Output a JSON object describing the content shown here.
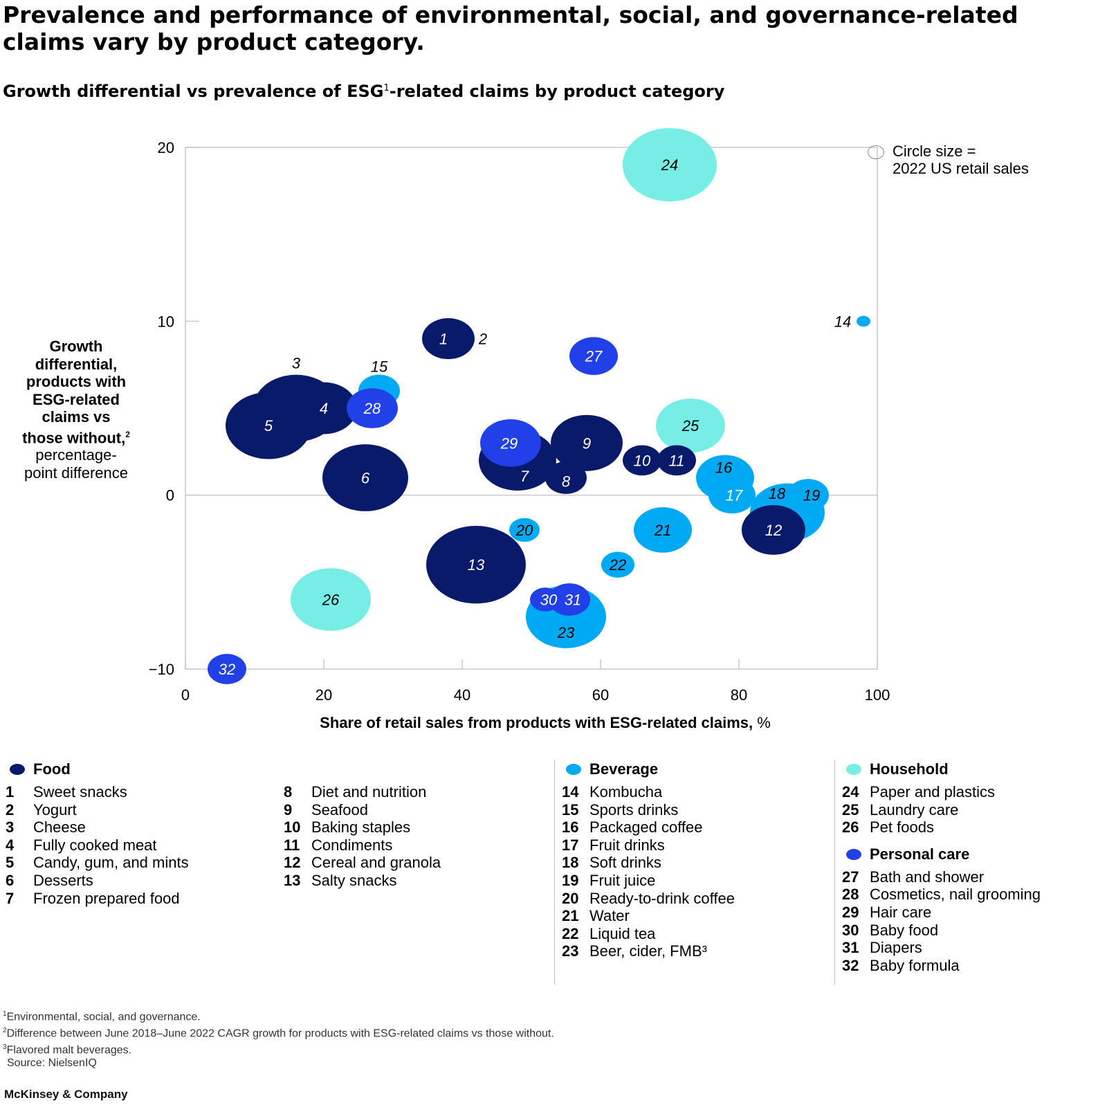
{
  "title": "Prevalence and performance of environmental, social, and governance-related claims vary by product category.",
  "subtitle": {
    "text": "Growth differential vs prevalence of ESG",
    "sup": "1",
    "rest": "-related claims by product category"
  },
  "y_axis_label": {
    "bold": [
      "Growth",
      "differential,",
      "products with",
      "ESG-related",
      "claims vs"
    ],
    "bold_last": "those without,",
    "bold_last_sup": "2",
    "normal": [
      "percentage-",
      "point difference"
    ]
  },
  "size_note": {
    "line1": "Circle size =",
    "line2": "2022 US retail sales"
  },
  "colors": {
    "food": "#0a1a6b",
    "beverage": "#00a9f4",
    "household": "#76ede5",
    "personal_care": "#2140e8"
  },
  "chart_data": {
    "type": "scatter",
    "xlabel": "Share of retail sales from products with ESG-related claims, %",
    "ylabel": "Growth differential, products with ESG-related claims vs those without, percentage-point difference",
    "xlim": [
      0,
      100
    ],
    "ylim": [
      -10,
      20
    ],
    "x_ticks": [
      0,
      20,
      40,
      60,
      80,
      100
    ],
    "y_ticks": [
      -10,
      0,
      10,
      20
    ],
    "y_tick_labels": [
      "−10",
      "0",
      "10",
      "20"
    ],
    "grid": false,
    "size_encoding": "2022 US retail sales",
    "points": [
      {
        "id": "26",
        "category": "household",
        "x": 21,
        "y": -6,
        "r": 58
      },
      {
        "id": "24",
        "category": "household",
        "x": 70,
        "y": 19,
        "r": 68
      },
      {
        "id": "25",
        "category": "household",
        "x": 73,
        "y": 4,
        "r": 50
      },
      {
        "id": "5",
        "category": "food",
        "x": 12,
        "y": 4,
        "r": 62
      },
      {
        "id": "3",
        "category": "food",
        "x": 16,
        "y": 5,
        "r": 62
      },
      {
        "id": "4",
        "category": "food",
        "x": 20,
        "y": 5,
        "r": 48
      },
      {
        "id": "6",
        "category": "food",
        "x": 26,
        "y": 1,
        "r": 62
      },
      {
        "id": "1",
        "category": "food",
        "x": 38,
        "y": 9,
        "r": 38
      },
      {
        "id": "2",
        "category": "food",
        "x": 43,
        "y": 9,
        "r": 0
      },
      {
        "id": "13",
        "category": "food",
        "x": 42,
        "y": -4,
        "r": 72
      },
      {
        "id": "7",
        "category": "food",
        "x": 48,
        "y": 2,
        "r": 56
      },
      {
        "id": "8",
        "category": "food",
        "x": 55,
        "y": 1,
        "r": 30
      },
      {
        "id": "9",
        "category": "food",
        "x": 58,
        "y": 3,
        "r": 52
      },
      {
        "id": "10",
        "category": "food",
        "x": 66,
        "y": 2,
        "r": 28
      },
      {
        "id": "11",
        "category": "food",
        "x": 71,
        "y": 2,
        "r": 28
      },
      {
        "id": "15",
        "category": "beverage",
        "x": 28,
        "y": 6,
        "r": 30
      },
      {
        "id": "14",
        "category": "beverage",
        "x": 98,
        "y": 10,
        "r": 10
      },
      {
        "id": "20",
        "category": "beverage",
        "x": 49,
        "y": -2,
        "r": 22
      },
      {
        "id": "22",
        "category": "beverage",
        "x": 62.5,
        "y": -4,
        "r": 24
      },
      {
        "id": "21",
        "category": "beverage",
        "x": 69,
        "y": -2,
        "r": 42
      },
      {
        "id": "23",
        "category": "beverage",
        "x": 55,
        "y": -7,
        "r": 58
      },
      {
        "id": "16",
        "category": "beverage",
        "x": 78,
        "y": 1,
        "r": 42
      },
      {
        "id": "17",
        "category": "beverage",
        "x": 79,
        "y": 0,
        "r": 34
      },
      {
        "id": "18",
        "category": "beverage",
        "x": 87,
        "y": -1,
        "r": 54
      },
      {
        "id": "19",
        "category": "beverage",
        "x": 90,
        "y": 0,
        "r": 30
      },
      {
        "id": "12",
        "category": "food",
        "x": 85,
        "y": -2,
        "r": 46
      },
      {
        "id": "28",
        "category": "personal_care",
        "x": 27,
        "y": 5,
        "r": 37
      },
      {
        "id": "29",
        "category": "personal_care",
        "x": 47,
        "y": 3,
        "r": 44
      },
      {
        "id": "27",
        "category": "personal_care",
        "x": 59,
        "y": 8,
        "r": 35
      },
      {
        "id": "30",
        "category": "personal_care",
        "x": 52,
        "y": -6,
        "r": 22
      },
      {
        "id": "31",
        "category": "personal_care",
        "x": 55.5,
        "y": -6,
        "r": 30
      },
      {
        "id": "32",
        "category": "personal_care",
        "x": 6,
        "y": -10,
        "r": 28
      }
    ],
    "labels": [
      {
        "id": "24",
        "x": 70,
        "y": 19,
        "dx": 0,
        "dy": 0,
        "color": "#000"
      },
      {
        "id": "25",
        "x": 73,
        "y": 4,
        "dx": 0,
        "dy": 0,
        "color": "#000"
      },
      {
        "id": "26",
        "x": 21,
        "y": -6,
        "dx": 0,
        "dy": 0,
        "color": "#000"
      },
      {
        "id": "5",
        "x": 12,
        "y": 4,
        "dx": 0,
        "dy": 0,
        "color": "#fff"
      },
      {
        "id": "3",
        "x": 16,
        "y": 7.6,
        "dx": 0,
        "dy": 0,
        "color": "#000"
      },
      {
        "id": "4",
        "x": 20,
        "y": 5,
        "dx": 0,
        "dy": 0,
        "color": "#fff"
      },
      {
        "id": "6",
        "x": 26,
        "y": 1,
        "dx": 0,
        "dy": 0,
        "color": "#fff"
      },
      {
        "id": "1",
        "x": 37.3,
        "y": 9,
        "dx": 0,
        "dy": 0,
        "color": "#fff"
      },
      {
        "id": "2",
        "x": 43,
        "y": 9,
        "dx": 0,
        "dy": 0,
        "color": "#000"
      },
      {
        "id": "13",
        "x": 42,
        "y": -4,
        "dx": 0,
        "dy": 0,
        "color": "#fff"
      },
      {
        "id": "7",
        "x": 49,
        "y": 1.1,
        "dx": 0,
        "dy": 0,
        "color": "#fff"
      },
      {
        "id": "8",
        "x": 55,
        "y": 0.8,
        "dx": 0,
        "dy": 0,
        "color": "#fff"
      },
      {
        "id": "9",
        "x": 58,
        "y": 3,
        "dx": 0,
        "dy": 0,
        "color": "#fff"
      },
      {
        "id": "10",
        "x": 66,
        "y": 2,
        "dx": 0,
        "dy": 0,
        "color": "#fff"
      },
      {
        "id": "11",
        "x": 71,
        "y": 2,
        "dx": 0,
        "dy": 0,
        "color": "#fff"
      },
      {
        "id": "15",
        "x": 28,
        "y": 7.4,
        "dx": 0,
        "dy": 0,
        "color": "#000"
      },
      {
        "id": "14",
        "x": 95,
        "y": 10,
        "dx": 0,
        "dy": 0,
        "color": "#000"
      },
      {
        "id": "20",
        "x": 49,
        "y": -2,
        "dx": 0,
        "dy": 0,
        "color": "#000"
      },
      {
        "id": "22",
        "x": 62.5,
        "y": -4,
        "dx": 0,
        "dy": 0,
        "color": "#000"
      },
      {
        "id": "21",
        "x": 69,
        "y": -2,
        "dx": 0,
        "dy": 0,
        "color": "#000"
      },
      {
        "id": "23",
        "x": 55,
        "y": -7.9,
        "dx": 0,
        "dy": 0,
        "color": "#000"
      },
      {
        "id": "16",
        "x": 77.8,
        "y": 1.6,
        "dx": 0,
        "dy": 0,
        "color": "#000"
      },
      {
        "id": "17",
        "x": 79.3,
        "y": 0,
        "dx": 0,
        "dy": 0,
        "color": "#fff"
      },
      {
        "id": "18",
        "x": 85.5,
        "y": 0.1,
        "dx": 0,
        "dy": 0,
        "color": "#000"
      },
      {
        "id": "19",
        "x": 90.5,
        "y": 0,
        "dx": 0,
        "dy": 0,
        "color": "#000"
      },
      {
        "id": "12",
        "x": 85,
        "y": -2,
        "dx": 0,
        "dy": 0,
        "color": "#fff"
      },
      {
        "id": "28",
        "x": 27,
        "y": 5,
        "dx": 0,
        "dy": 0,
        "color": "#fff"
      },
      {
        "id": "29",
        "x": 46.8,
        "y": 3,
        "dx": 0,
        "dy": 0,
        "color": "#fff"
      },
      {
        "id": "27",
        "x": 59,
        "y": 8,
        "dx": 0,
        "dy": 0,
        "color": "#fff"
      },
      {
        "id": "30",
        "x": 52.5,
        "y": -6,
        "dx": 0,
        "dy": 0,
        "color": "#fff"
      },
      {
        "id": "31",
        "x": 56,
        "y": -6,
        "dx": 0,
        "dy": 0,
        "color": "#fff"
      },
      {
        "id": "32",
        "x": 6,
        "y": -10,
        "dx": 0,
        "dy": 0,
        "color": "#fff"
      }
    ]
  },
  "legend": {
    "food": {
      "title": "Food",
      "items": [
        {
          "n": "1",
          "label": "Sweet snacks"
        },
        {
          "n": "2",
          "label": "Yogurt"
        },
        {
          "n": "3",
          "label": "Cheese"
        },
        {
          "n": "4",
          "label": "Fully cooked meat"
        },
        {
          "n": "5",
          "label": "Candy, gum, and mints"
        },
        {
          "n": "6",
          "label": "Desserts"
        },
        {
          "n": "7",
          "label": "Frozen prepared food"
        }
      ],
      "items2": [
        {
          "n": "8",
          "label": "Diet and nutrition"
        },
        {
          "n": "9",
          "label": "Seafood"
        },
        {
          "n": "10",
          "label": "Baking staples"
        },
        {
          "n": "11",
          "label": "Condiments"
        },
        {
          "n": "12",
          "label": "Cereal and granola"
        },
        {
          "n": "13",
          "label": "Salty snacks"
        }
      ]
    },
    "beverage": {
      "title": "Beverage",
      "items": [
        {
          "n": "14",
          "label": "Kombucha"
        },
        {
          "n": "15",
          "label": "Sports drinks"
        },
        {
          "n": "16",
          "label": "Packaged coffee"
        },
        {
          "n": "17",
          "label": "Fruit drinks"
        },
        {
          "n": "18",
          "label": "Soft drinks"
        },
        {
          "n": "19",
          "label": "Fruit juice"
        },
        {
          "n": "20",
          "label": "Ready-to-drink coffee"
        },
        {
          "n": "21",
          "label": "Water"
        },
        {
          "n": "22",
          "label": "Liquid tea"
        },
        {
          "n": "23",
          "label": "Beer, cider, FMB³"
        }
      ]
    },
    "household": {
      "title": "Household",
      "items": [
        {
          "n": "24",
          "label": "Paper and plastics"
        },
        {
          "n": "25",
          "label": "Laundry care"
        },
        {
          "n": "26",
          "label": "Pet foods"
        }
      ]
    },
    "personal_care": {
      "title": "Personal care",
      "items": [
        {
          "n": "27",
          "label": "Bath and shower"
        },
        {
          "n": "28",
          "label": "Cosmetics, nail grooming"
        },
        {
          "n": "29",
          "label": "Hair care"
        },
        {
          "n": "30",
          "label": "Baby food"
        },
        {
          "n": "31",
          "label": "Diapers"
        },
        {
          "n": "32",
          "label": "Baby formula"
        }
      ]
    }
  },
  "footnotes": [
    {
      "sup": "1",
      "text": "Environmental, social, and governance."
    },
    {
      "sup": "2",
      "text": "Difference between June 2018–June 2022 CAGR growth for products with ESG-related claims vs those without."
    },
    {
      "sup": "3",
      "text": "Flavored malt beverages."
    }
  ],
  "source": "Source: NielsenIQ",
  "brand": "McKinsey & Company"
}
